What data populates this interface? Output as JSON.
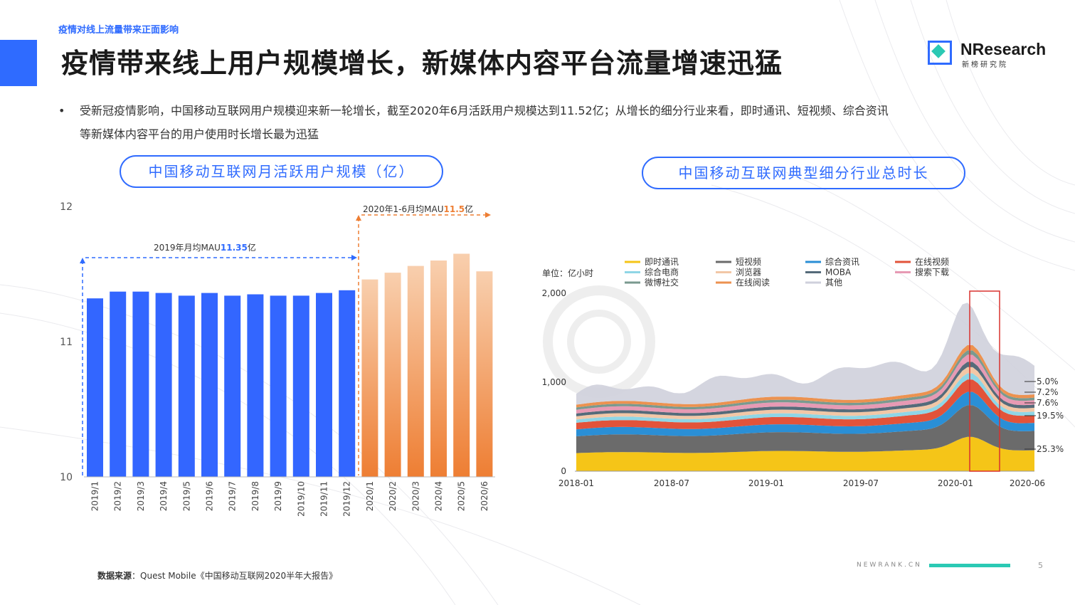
{
  "header": {
    "section_tag": "疫情对线上流量带来正面影响",
    "title": "疫情带来线上用户规模增长，新媒体内容平台流量增速迅猛",
    "logo_name": "NResearch",
    "logo_sub": "新榜研究院"
  },
  "bullet": {
    "line1": "受新冠疫情影响，中国移动互联网用户规模迎来新一轮增长，截至2020年6月活跃用户规模达到11.52亿；从增长的细分行业来看，即时通讯、短视频、综合资讯",
    "line2": "等新媒体内容平台的用户使用时长增长最为迅猛"
  },
  "left_chart_title": "中国移动互联网月活跃用户规模（亿）",
  "right_chart_title": "中国移动互联网典型细分行业总时长",
  "source_label": "数据来源",
  "source_text": "：Quest Mobile《中国移动互联网2020半年大报告》",
  "footer": {
    "brand": "NEWRANK.CN",
    "page": "5"
  },
  "colors": {
    "accent": "#2f6bff",
    "teal": "#2bc9b4",
    "bar_2019": "#3366ff",
    "bar_2020_top": "#f8cfae",
    "bar_2020_bottom": "#ee7e33"
  },
  "chart_data": [
    {
      "type": "bar",
      "categories": [
        "2019/1",
        "2019/2",
        "2019/3",
        "2019/4",
        "2019/5",
        "2019/6",
        "2019/7",
        "2019/8",
        "2019/9",
        "2019/10",
        "2019/11",
        "2019/12",
        "2020/1",
        "2020/2",
        "2020/3",
        "2020/4",
        "2020/5",
        "2020/6"
      ],
      "values": [
        11.32,
        11.37,
        11.37,
        11.36,
        11.34,
        11.36,
        11.34,
        11.35,
        11.34,
        11.34,
        11.36,
        11.38,
        11.46,
        11.51,
        11.56,
        11.6,
        11.65,
        11.52
      ],
      "ylim": [
        10,
        12
      ],
      "yticks": [
        "12",
        "11",
        "10"
      ],
      "annotations": [
        {
          "prefix": "2019年月均MAU",
          "value": "11.35",
          "suffix": "亿"
        },
        {
          "prefix": "2020年1-6月均MAU",
          "value": "11.5",
          "suffix": "亿"
        }
      ]
    },
    {
      "type": "area",
      "unit_label": "单位：亿小时",
      "yticks": [
        "2,000",
        "1,000",
        "0"
      ],
      "xticks": [
        "2018-01",
        "2018-07",
        "2019-01",
        "2019-07",
        "2020-01",
        "2020-06"
      ],
      "ylim": [
        0,
        2000
      ],
      "legend": [
        {
          "name": "即时通讯",
          "color": "#f5c518"
        },
        {
          "name": "短视频",
          "color": "#6b6b6b"
        },
        {
          "name": "综合资讯",
          "color": "#2a8fd6"
        },
        {
          "name": "在线视频",
          "color": "#e2533a"
        },
        {
          "name": "综合电商",
          "color": "#8fd6e6"
        },
        {
          "name": "浏览器",
          "color": "#f2c7a6"
        },
        {
          "name": "MOBA",
          "color": "#556b7a"
        },
        {
          "name": "搜索下载",
          "color": "#e79ab4"
        },
        {
          "name": "微博社交",
          "color": "#7a9a8f"
        },
        {
          "name": "在线阅读",
          "color": "#ec9250"
        },
        {
          "name": "其他",
          "color": "#cfd0dc"
        }
      ],
      "share_labels": [
        "5.0%",
        "7.2%",
        "7.6%",
        "19.5%",
        "25.3%"
      ]
    }
  ]
}
